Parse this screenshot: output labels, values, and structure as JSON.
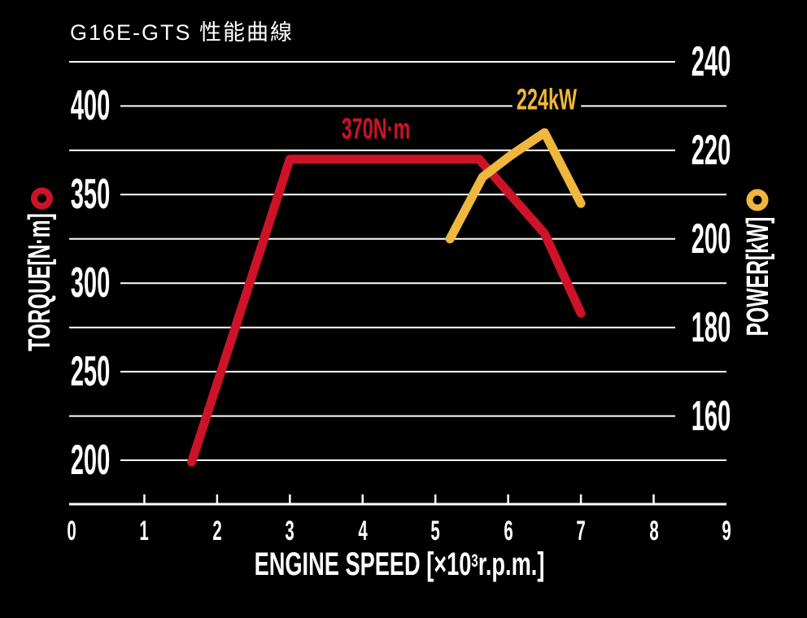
{
  "title": "G16E-GTS 性能曲線",
  "left_axis": {
    "label": "TORQUE[N·m]"
  },
  "right_axis": {
    "label": "POWER[kW]"
  },
  "x_axis": {
    "label_prefix": "ENGINE SPEED [×10",
    "label_sup": "3",
    "label_suffix": "r.p.m.]"
  },
  "annotations": {
    "torque_peak": "370N·m",
    "power_peak": "224kW"
  },
  "colors": {
    "torque_red": "#cd1327",
    "power_yellow": "#efb73d",
    "grid": "#ffffff",
    "background": "#000000"
  },
  "chart_data": {
    "type": "line",
    "title": "G16E-GTS 性能曲線",
    "grid": true,
    "x_axis": {
      "label": "ENGINE SPEED [×10^3 r.p.m.]",
      "range": [
        0,
        9
      ],
      "ticks": [
        0,
        1,
        2,
        3,
        4,
        5,
        6,
        7,
        8,
        9
      ]
    },
    "left_axis": {
      "label": "TORQUE [N·m]",
      "ticks": [
        400,
        350,
        300,
        250,
        200
      ],
      "legend_marker": "red-ring"
    },
    "right_axis": {
      "label": "POWER [kW]",
      "ticks": [
        240,
        220,
        200,
        180,
        160
      ],
      "legend_marker": "yellow-ring"
    },
    "series": [
      {
        "name": "torque",
        "axis": "left",
        "unit": "N·m",
        "color": "#cd1327",
        "peak_label": "370N·m",
        "points": [
          [
            1.65,
            199
          ],
          [
            3.0,
            370
          ],
          [
            5.6,
            370
          ],
          [
            6.5,
            328
          ],
          [
            7.0,
            283
          ]
        ]
      },
      {
        "name": "power",
        "axis": "right",
        "unit": "kW",
        "color": "#efb73d",
        "peak_label": "224kW",
        "points": [
          [
            5.2,
            200
          ],
          [
            5.65,
            214
          ],
          [
            6.05,
            219
          ],
          [
            6.5,
            224
          ],
          [
            7.0,
            208
          ]
        ]
      }
    ]
  }
}
